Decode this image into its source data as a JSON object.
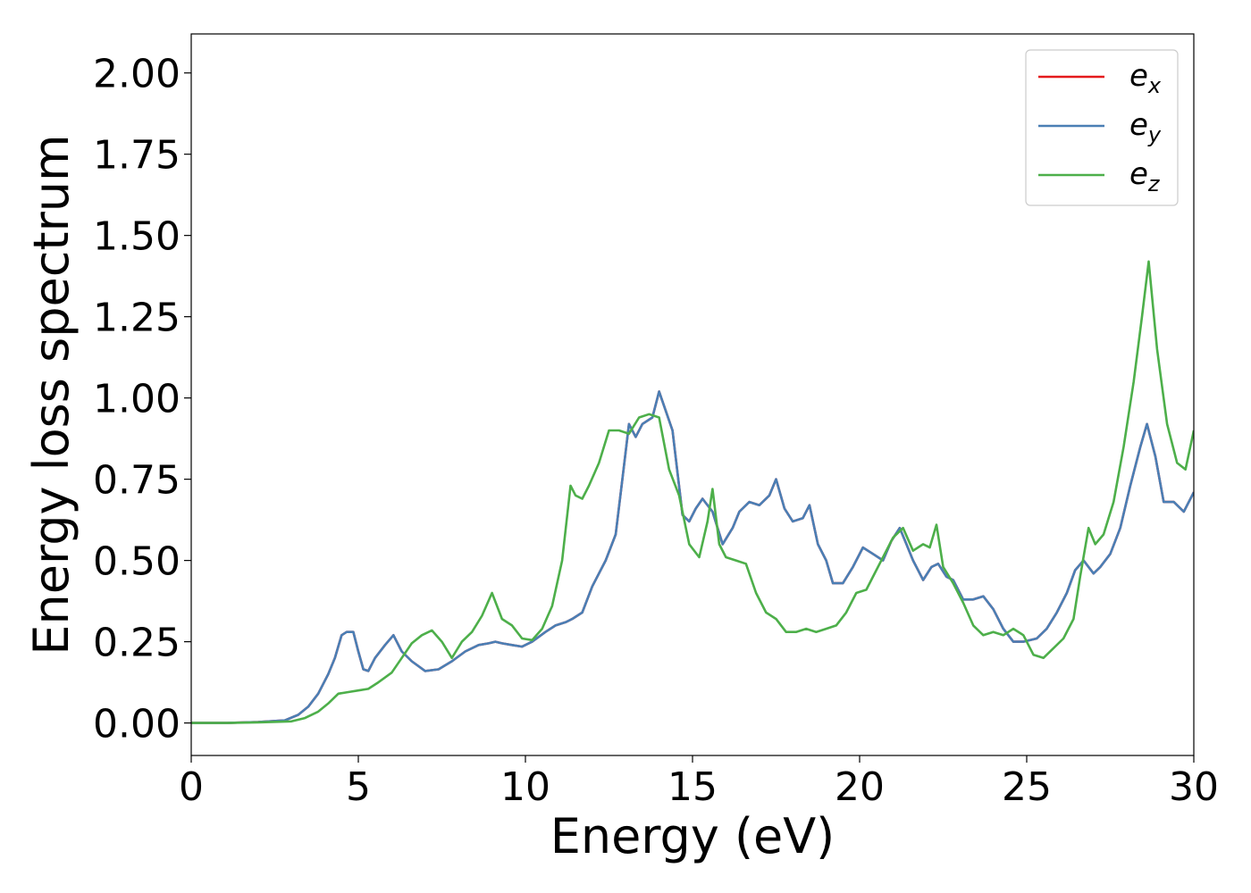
{
  "chart_data": {
    "type": "line",
    "title": "",
    "xlabel": "Energy (eV)",
    "ylabel": "Energy loss spectrum",
    "xlim": [
      0,
      30
    ],
    "ylim": [
      -0.1,
      2.12
    ],
    "xticks": [
      0,
      5,
      10,
      15,
      20,
      25,
      30
    ],
    "xtick_labels": [
      "0",
      "5",
      "10",
      "15",
      "20",
      "25",
      "30"
    ],
    "yticks": [
      0.0,
      0.25,
      0.5,
      0.75,
      1.0,
      1.25,
      1.5,
      1.75,
      2.0
    ],
    "ytick_labels": [
      "0.00",
      "0.25",
      "0.50",
      "0.75",
      "1.00",
      "1.25",
      "1.50",
      "1.75",
      "2.00"
    ],
    "grid": false,
    "legend_position": "top-right",
    "series": [
      {
        "name": "e_x",
        "legend_base": "e",
        "legend_sub": "x",
        "color": "#e41a1c",
        "x": [
          0,
          1,
          2,
          2.8,
          3.2,
          3.5,
          3.8,
          4.1,
          4.3,
          4.5,
          4.65,
          4.85,
          5.0,
          5.15,
          5.3,
          5.5,
          5.8,
          6.05,
          6.3,
          6.6,
          7.0,
          7.4,
          7.8,
          8.2,
          8.6,
          8.9,
          9.1,
          9.3,
          9.6,
          9.9,
          10.2,
          10.6,
          10.9,
          11.2,
          11.4,
          11.7,
          12.0,
          12.4,
          12.7,
          12.9,
          13.1,
          13.3,
          13.5,
          13.8,
          14.0,
          14.2,
          14.4,
          14.7,
          14.9,
          15.1,
          15.3,
          15.6,
          15.9,
          16.2,
          16.4,
          16.7,
          17.0,
          17.3,
          17.5,
          17.75,
          18.0,
          18.3,
          18.5,
          18.75,
          19.0,
          19.2,
          19.5,
          19.8,
          20.1,
          20.4,
          20.7,
          20.95,
          21.2,
          21.4,
          21.6,
          21.9,
          22.15,
          22.35,
          22.6,
          22.8,
          23.1,
          23.4,
          23.7,
          24.0,
          24.3,
          24.6,
          24.9,
          25.3,
          25.6,
          25.9,
          26.2,
          26.45,
          26.7,
          27.0,
          27.2,
          27.5,
          27.8,
          28.1,
          28.4,
          28.6,
          28.85,
          29.1,
          29.4,
          29.7,
          30.0
        ],
        "y": [
          0.0,
          0.0,
          0.003,
          0.008,
          0.025,
          0.05,
          0.09,
          0.15,
          0.2,
          0.27,
          0.28,
          0.28,
          0.22,
          0.165,
          0.16,
          0.2,
          0.24,
          0.27,
          0.22,
          0.19,
          0.16,
          0.165,
          0.19,
          0.22,
          0.24,
          0.245,
          0.25,
          0.245,
          0.24,
          0.235,
          0.25,
          0.28,
          0.3,
          0.31,
          0.32,
          0.34,
          0.42,
          0.5,
          0.58,
          0.75,
          0.92,
          0.88,
          0.92,
          0.94,
          1.02,
          0.96,
          0.9,
          0.64,
          0.62,
          0.66,
          0.69,
          0.65,
          0.55,
          0.6,
          0.65,
          0.68,
          0.67,
          0.7,
          0.75,
          0.66,
          0.62,
          0.63,
          0.67,
          0.55,
          0.5,
          0.43,
          0.43,
          0.48,
          0.54,
          0.52,
          0.5,
          0.56,
          0.6,
          0.55,
          0.5,
          0.44,
          0.48,
          0.49,
          0.45,
          0.44,
          0.38,
          0.38,
          0.39,
          0.35,
          0.29,
          0.25,
          0.25,
          0.26,
          0.29,
          0.34,
          0.4,
          0.47,
          0.5,
          0.46,
          0.48,
          0.52,
          0.6,
          0.73,
          0.85,
          0.92,
          0.82,
          0.68,
          0.68,
          0.65,
          0.71
        ]
      },
      {
        "name": "e_y",
        "legend_base": "e",
        "legend_sub": "y",
        "color": "#4a7fb5",
        "x": [
          0,
          1,
          2,
          2.8,
          3.2,
          3.5,
          3.8,
          4.1,
          4.3,
          4.5,
          4.65,
          4.85,
          5.0,
          5.15,
          5.3,
          5.5,
          5.8,
          6.05,
          6.3,
          6.6,
          7.0,
          7.4,
          7.8,
          8.2,
          8.6,
          8.9,
          9.1,
          9.3,
          9.6,
          9.9,
          10.2,
          10.6,
          10.9,
          11.2,
          11.4,
          11.7,
          12.0,
          12.4,
          12.7,
          12.9,
          13.1,
          13.3,
          13.5,
          13.8,
          14.0,
          14.2,
          14.4,
          14.7,
          14.9,
          15.1,
          15.3,
          15.6,
          15.9,
          16.2,
          16.4,
          16.7,
          17.0,
          17.3,
          17.5,
          17.75,
          18.0,
          18.3,
          18.5,
          18.75,
          19.0,
          19.2,
          19.5,
          19.8,
          20.1,
          20.4,
          20.7,
          20.95,
          21.2,
          21.4,
          21.6,
          21.9,
          22.15,
          22.35,
          22.6,
          22.8,
          23.1,
          23.4,
          23.7,
          24.0,
          24.3,
          24.6,
          24.9,
          25.3,
          25.6,
          25.9,
          26.2,
          26.45,
          26.7,
          27.0,
          27.2,
          27.5,
          27.8,
          28.1,
          28.4,
          28.6,
          28.85,
          29.1,
          29.4,
          29.7,
          30.0
        ],
        "y": [
          0.0,
          0.0,
          0.003,
          0.008,
          0.025,
          0.05,
          0.09,
          0.15,
          0.2,
          0.27,
          0.28,
          0.28,
          0.22,
          0.165,
          0.16,
          0.2,
          0.24,
          0.27,
          0.22,
          0.19,
          0.16,
          0.165,
          0.19,
          0.22,
          0.24,
          0.245,
          0.25,
          0.245,
          0.24,
          0.235,
          0.25,
          0.28,
          0.3,
          0.31,
          0.32,
          0.34,
          0.42,
          0.5,
          0.58,
          0.75,
          0.92,
          0.88,
          0.92,
          0.94,
          1.02,
          0.96,
          0.9,
          0.64,
          0.62,
          0.66,
          0.69,
          0.65,
          0.55,
          0.6,
          0.65,
          0.68,
          0.67,
          0.7,
          0.75,
          0.66,
          0.62,
          0.63,
          0.67,
          0.55,
          0.5,
          0.43,
          0.43,
          0.48,
          0.54,
          0.52,
          0.5,
          0.56,
          0.6,
          0.55,
          0.5,
          0.44,
          0.48,
          0.49,
          0.45,
          0.44,
          0.38,
          0.38,
          0.39,
          0.35,
          0.29,
          0.25,
          0.25,
          0.26,
          0.29,
          0.34,
          0.4,
          0.47,
          0.5,
          0.46,
          0.48,
          0.52,
          0.6,
          0.73,
          0.85,
          0.92,
          0.82,
          0.68,
          0.68,
          0.65,
          0.71
        ]
      },
      {
        "name": "e_z",
        "legend_base": "e",
        "legend_sub": "z",
        "color": "#4daf4a",
        "x": [
          0,
          1,
          2,
          3.0,
          3.4,
          3.8,
          4.1,
          4.4,
          4.7,
          5.0,
          5.3,
          5.6,
          6.0,
          6.3,
          6.6,
          6.9,
          7.2,
          7.5,
          7.8,
          8.1,
          8.4,
          8.7,
          9.0,
          9.3,
          9.6,
          9.9,
          10.2,
          10.5,
          10.8,
          11.1,
          11.35,
          11.5,
          11.7,
          11.9,
          12.2,
          12.5,
          12.8,
          13.1,
          13.4,
          13.7,
          14.0,
          14.3,
          14.6,
          14.9,
          15.2,
          15.45,
          15.6,
          15.8,
          16.0,
          16.3,
          16.6,
          16.9,
          17.2,
          17.5,
          17.8,
          18.1,
          18.4,
          18.7,
          19.0,
          19.3,
          19.6,
          19.9,
          20.2,
          20.5,
          20.8,
          21.0,
          21.3,
          21.6,
          21.9,
          22.1,
          22.3,
          22.5,
          22.8,
          23.1,
          23.4,
          23.7,
          24.0,
          24.3,
          24.6,
          24.9,
          25.2,
          25.5,
          25.8,
          26.1,
          26.4,
          26.6,
          26.85,
          27.05,
          27.3,
          27.6,
          27.9,
          28.2,
          28.45,
          28.65,
          28.9,
          29.2,
          29.5,
          29.75,
          30.0
        ],
        "y": [
          0.0,
          0.0,
          0.002,
          0.005,
          0.015,
          0.035,
          0.06,
          0.09,
          0.095,
          0.1,
          0.105,
          0.125,
          0.155,
          0.2,
          0.245,
          0.27,
          0.285,
          0.25,
          0.2,
          0.25,
          0.28,
          0.33,
          0.4,
          0.32,
          0.3,
          0.26,
          0.255,
          0.29,
          0.36,
          0.5,
          0.73,
          0.7,
          0.69,
          0.73,
          0.8,
          0.9,
          0.9,
          0.89,
          0.94,
          0.95,
          0.94,
          0.78,
          0.7,
          0.55,
          0.51,
          0.62,
          0.72,
          0.55,
          0.51,
          0.5,
          0.49,
          0.4,
          0.34,
          0.32,
          0.28,
          0.28,
          0.29,
          0.28,
          0.29,
          0.3,
          0.34,
          0.4,
          0.41,
          0.47,
          0.53,
          0.57,
          0.6,
          0.53,
          0.55,
          0.54,
          0.61,
          0.48,
          0.43,
          0.37,
          0.3,
          0.27,
          0.28,
          0.27,
          0.29,
          0.27,
          0.21,
          0.2,
          0.23,
          0.26,
          0.32,
          0.45,
          0.6,
          0.55,
          0.58,
          0.68,
          0.85,
          1.05,
          1.25,
          1.42,
          1.15,
          0.92,
          0.8,
          0.78,
          0.9
        ]
      }
    ]
  }
}
